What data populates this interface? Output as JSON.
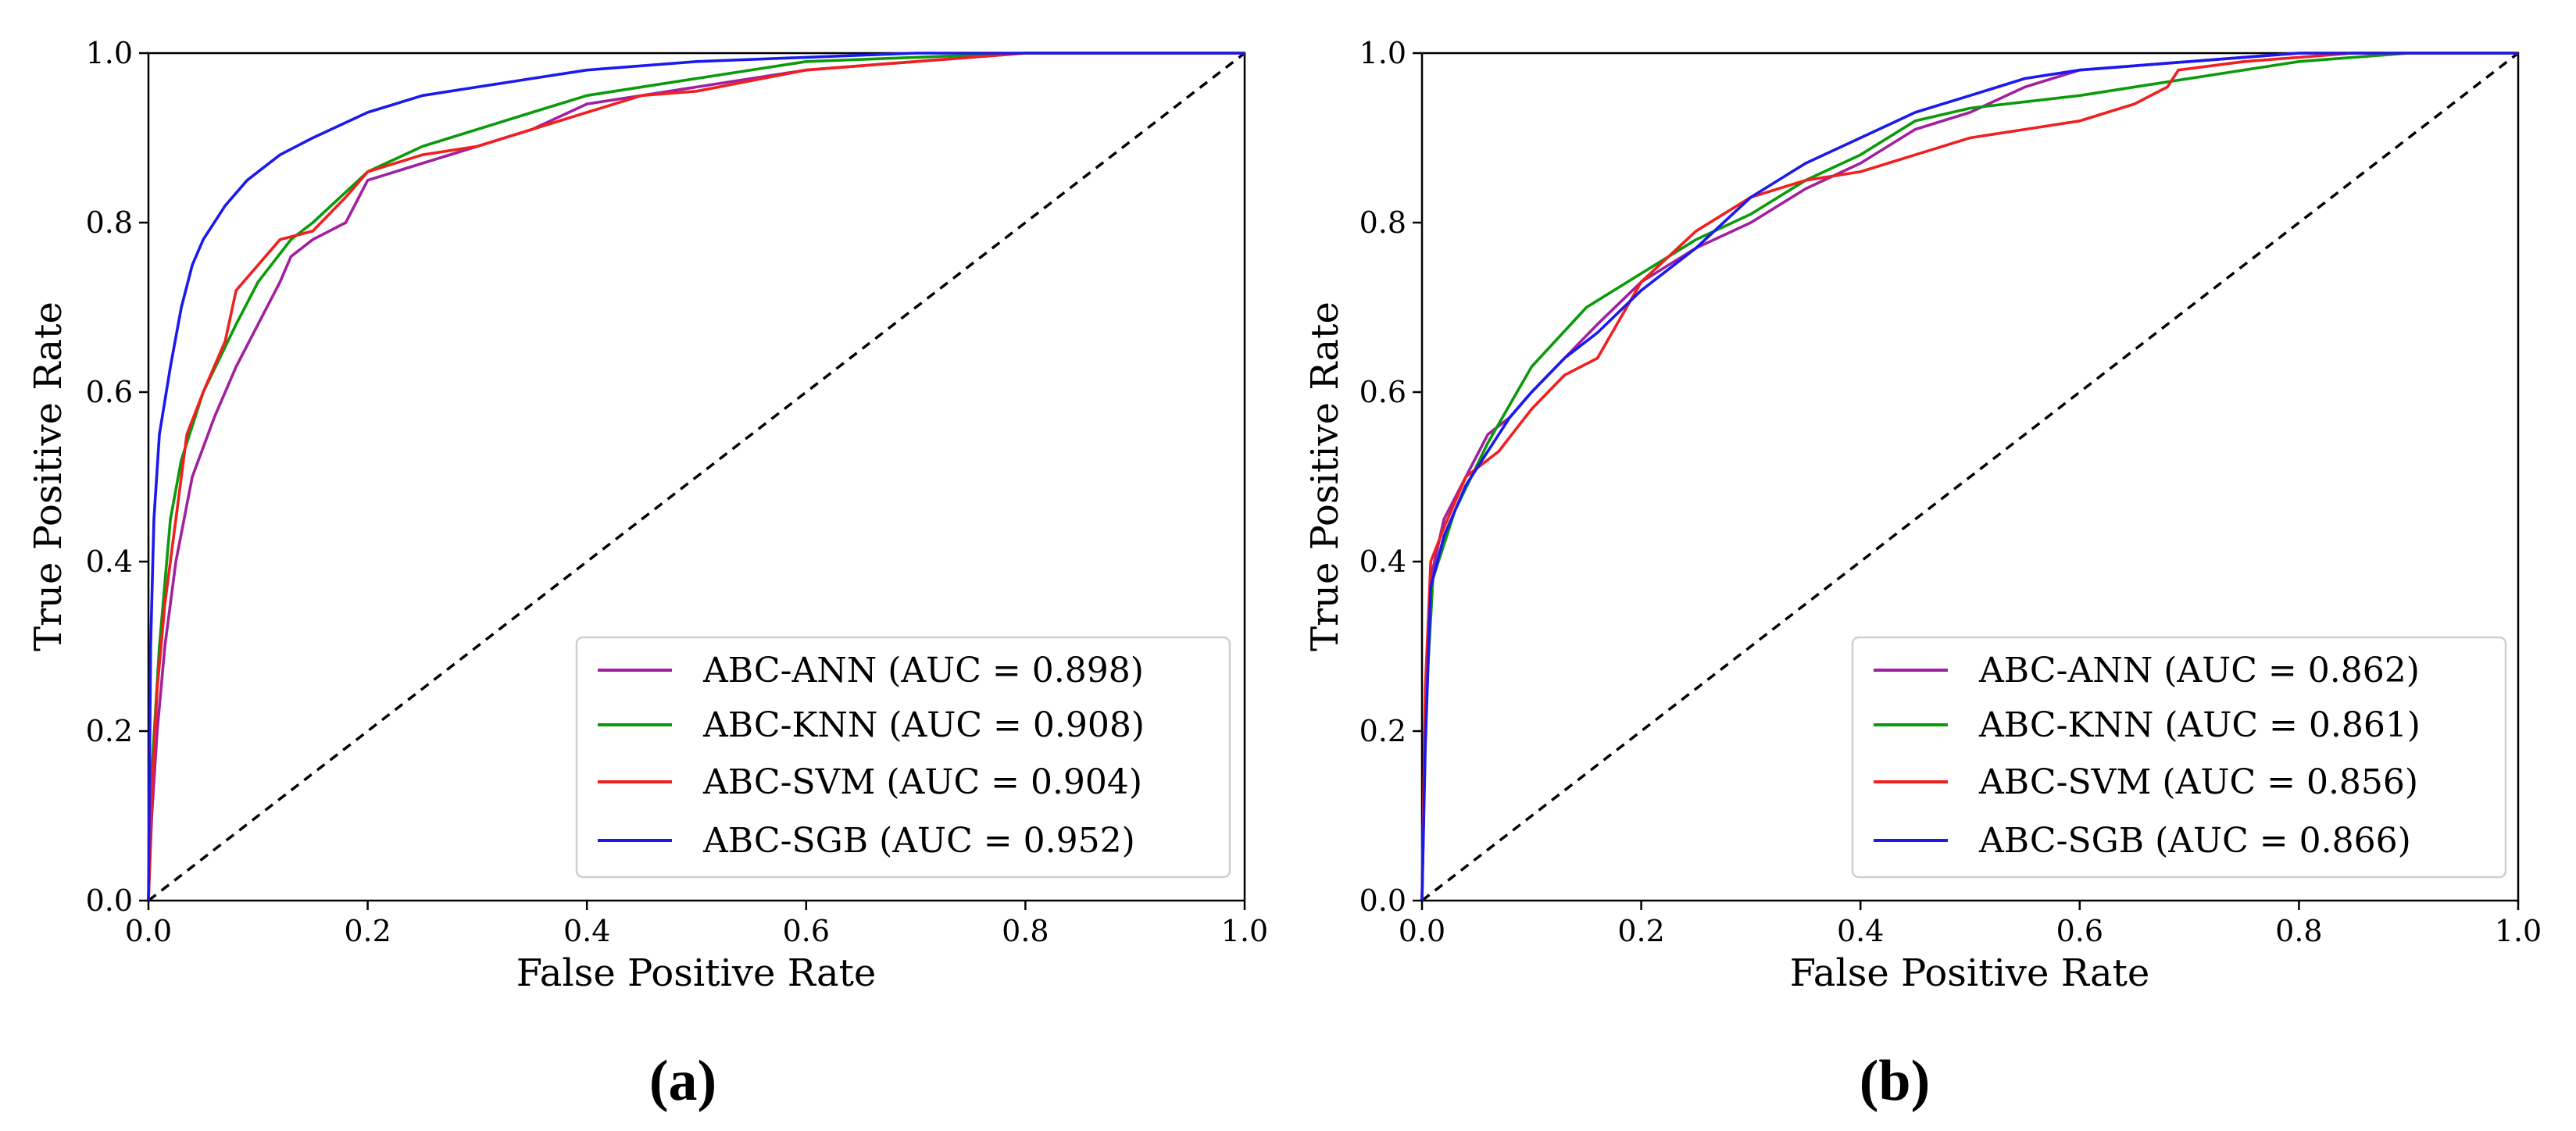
{
  "chart_data": [
    {
      "type": "line",
      "panel_label": "(a)",
      "xlabel": "False Positive Rate",
      "ylabel": "True Positive Rate",
      "xlim": [
        0,
        1
      ],
      "ylim": [
        0,
        1
      ],
      "x_ticks": [
        "0.0",
        "0.2",
        "0.4",
        "0.6",
        "0.8",
        "1.0"
      ],
      "y_ticks": [
        "0.0",
        "0.2",
        "0.4",
        "0.6",
        "0.8",
        "1.0"
      ],
      "grid": false,
      "legend_position": "lower-right",
      "reference_line": {
        "style": "dashed",
        "color": "#000000",
        "points": [
          [
            0,
            0
          ],
          [
            1,
            1
          ]
        ]
      },
      "series": [
        {
          "name": "ABC-ANN (AUC = 0.898)",
          "color": "#a020a0",
          "points": [
            [
              0,
              0
            ],
            [
              0.003,
              0.1
            ],
            [
              0.008,
              0.2
            ],
            [
              0.015,
              0.3
            ],
            [
              0.025,
              0.4
            ],
            [
              0.04,
              0.5
            ],
            [
              0.06,
              0.57
            ],
            [
              0.08,
              0.63
            ],
            [
              0.1,
              0.68
            ],
            [
              0.12,
              0.73
            ],
            [
              0.13,
              0.76
            ],
            [
              0.15,
              0.78
            ],
            [
              0.18,
              0.8
            ],
            [
              0.2,
              0.85
            ],
            [
              0.25,
              0.87
            ],
            [
              0.3,
              0.89
            ],
            [
              0.35,
              0.91
            ],
            [
              0.4,
              0.94
            ],
            [
              0.45,
              0.95
            ],
            [
              0.5,
              0.96
            ],
            [
              0.6,
              0.98
            ],
            [
              0.7,
              0.99
            ],
            [
              0.8,
              1.0
            ],
            [
              1,
              1
            ]
          ]
        },
        {
          "name": "ABC-KNN (AUC = 0.908)",
          "color": "#0a9a0a",
          "points": [
            [
              0,
              0
            ],
            [
              0.003,
              0.15
            ],
            [
              0.01,
              0.3
            ],
            [
              0.02,
              0.45
            ],
            [
              0.03,
              0.52
            ],
            [
              0.05,
              0.6
            ],
            [
              0.08,
              0.68
            ],
            [
              0.1,
              0.73
            ],
            [
              0.13,
              0.78
            ],
            [
              0.15,
              0.8
            ],
            [
              0.2,
              0.86
            ],
            [
              0.25,
              0.89
            ],
            [
              0.3,
              0.91
            ],
            [
              0.35,
              0.93
            ],
            [
              0.4,
              0.95
            ],
            [
              0.5,
              0.97
            ],
            [
              0.6,
              0.99
            ],
            [
              0.7,
              0.995
            ],
            [
              0.8,
              1.0
            ],
            [
              1,
              1
            ]
          ]
        },
        {
          "name": "ABC-SVM (AUC = 0.904)",
          "color": "#f02020",
          "points": [
            [
              0,
              0
            ],
            [
              0.003,
              0.12
            ],
            [
              0.008,
              0.25
            ],
            [
              0.015,
              0.35
            ],
            [
              0.025,
              0.45
            ],
            [
              0.035,
              0.55
            ],
            [
              0.05,
              0.6
            ],
            [
              0.07,
              0.66
            ],
            [
              0.08,
              0.72
            ],
            [
              0.1,
              0.75
            ],
            [
              0.12,
              0.78
            ],
            [
              0.15,
              0.79
            ],
            [
              0.18,
              0.83
            ],
            [
              0.2,
              0.86
            ],
            [
              0.25,
              0.88
            ],
            [
              0.3,
              0.89
            ],
            [
              0.35,
              0.91
            ],
            [
              0.4,
              0.93
            ],
            [
              0.45,
              0.95
            ],
            [
              0.5,
              0.955
            ],
            [
              0.6,
              0.98
            ],
            [
              0.7,
              0.99
            ],
            [
              0.8,
              1.0
            ],
            [
              1,
              1
            ]
          ]
        },
        {
          "name": "ABC-SGB (AUC = 0.952)",
          "color": "#1a1aee",
          "points": [
            [
              0,
              0
            ],
            [
              0.002,
              0.3
            ],
            [
              0.005,
              0.45
            ],
            [
              0.01,
              0.55
            ],
            [
              0.02,
              0.63
            ],
            [
              0.03,
              0.7
            ],
            [
              0.04,
              0.75
            ],
            [
              0.05,
              0.78
            ],
            [
              0.07,
              0.82
            ],
            [
              0.09,
              0.85
            ],
            [
              0.12,
              0.88
            ],
            [
              0.15,
              0.9
            ],
            [
              0.2,
              0.93
            ],
            [
              0.25,
              0.95
            ],
            [
              0.3,
              0.96
            ],
            [
              0.35,
              0.97
            ],
            [
              0.4,
              0.98
            ],
            [
              0.5,
              0.99
            ],
            [
              0.6,
              0.995
            ],
            [
              0.7,
              1.0
            ],
            [
              1,
              1
            ]
          ]
        }
      ]
    },
    {
      "type": "line",
      "panel_label": "(b)",
      "xlabel": "False Positive Rate",
      "ylabel": "True Positive Rate",
      "xlim": [
        0,
        1
      ],
      "ylim": [
        0,
        1
      ],
      "x_ticks": [
        "0.0",
        "0.2",
        "0.4",
        "0.6",
        "0.8",
        "1.0"
      ],
      "y_ticks": [
        "0.0",
        "0.2",
        "0.4",
        "0.6",
        "0.8",
        "1.0"
      ],
      "grid": false,
      "legend_position": "lower-right",
      "reference_line": {
        "style": "dashed",
        "color": "#000000",
        "points": [
          [
            0,
            0
          ],
          [
            1,
            1
          ]
        ]
      },
      "series": [
        {
          "name": "ABC-ANN (AUC = 0.862)",
          "color": "#a020a0",
          "points": [
            [
              0,
              0
            ],
            [
              0.003,
              0.2
            ],
            [
              0.008,
              0.38
            ],
            [
              0.02,
              0.45
            ],
            [
              0.04,
              0.5
            ],
            [
              0.06,
              0.55
            ],
            [
              0.08,
              0.57
            ],
            [
              0.1,
              0.6
            ],
            [
              0.13,
              0.64
            ],
            [
              0.16,
              0.68
            ],
            [
              0.2,
              0.73
            ],
            [
              0.25,
              0.77
            ],
            [
              0.3,
              0.8
            ],
            [
              0.35,
              0.84
            ],
            [
              0.4,
              0.87
            ],
            [
              0.45,
              0.91
            ],
            [
              0.5,
              0.93
            ],
            [
              0.55,
              0.96
            ],
            [
              0.6,
              0.98
            ],
            [
              0.7,
              0.99
            ],
            [
              0.8,
              1.0
            ],
            [
              1,
              1
            ]
          ]
        },
        {
          "name": "ABC-KNN (AUC = 0.861)",
          "color": "#0a9a0a",
          "points": [
            [
              0,
              0
            ],
            [
              0.003,
              0.22
            ],
            [
              0.01,
              0.38
            ],
            [
              0.03,
              0.46
            ],
            [
              0.06,
              0.54
            ],
            [
              0.1,
              0.63
            ],
            [
              0.15,
              0.7
            ],
            [
              0.2,
              0.74
            ],
            [
              0.25,
              0.78
            ],
            [
              0.3,
              0.81
            ],
            [
              0.35,
              0.85
            ],
            [
              0.4,
              0.88
            ],
            [
              0.45,
              0.92
            ],
            [
              0.5,
              0.935
            ],
            [
              0.6,
              0.95
            ],
            [
              0.7,
              0.97
            ],
            [
              0.8,
              0.99
            ],
            [
              0.9,
              1.0
            ],
            [
              1,
              1
            ]
          ]
        },
        {
          "name": "ABC-SVM (AUC = 0.856)",
          "color": "#f02020",
          "points": [
            [
              0,
              0
            ],
            [
              0.003,
              0.25
            ],
            [
              0.008,
              0.4
            ],
            [
              0.02,
              0.44
            ],
            [
              0.04,
              0.5
            ],
            [
              0.07,
              0.53
            ],
            [
              0.1,
              0.58
            ],
            [
              0.13,
              0.62
            ],
            [
              0.16,
              0.64
            ],
            [
              0.2,
              0.73
            ],
            [
              0.25,
              0.79
            ],
            [
              0.3,
              0.83
            ],
            [
              0.35,
              0.85
            ],
            [
              0.4,
              0.86
            ],
            [
              0.45,
              0.88
            ],
            [
              0.5,
              0.9
            ],
            [
              0.55,
              0.91
            ],
            [
              0.6,
              0.92
            ],
            [
              0.65,
              0.94
            ],
            [
              0.68,
              0.96
            ],
            [
              0.69,
              0.98
            ],
            [
              0.75,
              0.99
            ],
            [
              0.85,
              1.0
            ],
            [
              1,
              1
            ]
          ]
        },
        {
          "name": "ABC-SGB (AUC = 0.866)",
          "color": "#1a1aee",
          "points": [
            [
              0,
              0
            ],
            [
              0.003,
              0.18
            ],
            [
              0.008,
              0.37
            ],
            [
              0.02,
              0.43
            ],
            [
              0.04,
              0.49
            ],
            [
              0.06,
              0.53
            ],
            [
              0.08,
              0.57
            ],
            [
              0.1,
              0.6
            ],
            [
              0.13,
              0.64
            ],
            [
              0.16,
              0.67
            ],
            [
              0.2,
              0.72
            ],
            [
              0.25,
              0.77
            ],
            [
              0.3,
              0.83
            ],
            [
              0.35,
              0.87
            ],
            [
              0.4,
              0.9
            ],
            [
              0.45,
              0.93
            ],
            [
              0.5,
              0.95
            ],
            [
              0.55,
              0.97
            ],
            [
              0.6,
              0.98
            ],
            [
              0.7,
              0.99
            ],
            [
              0.8,
              1.0
            ],
            [
              1,
              1
            ]
          ]
        }
      ]
    }
  ]
}
